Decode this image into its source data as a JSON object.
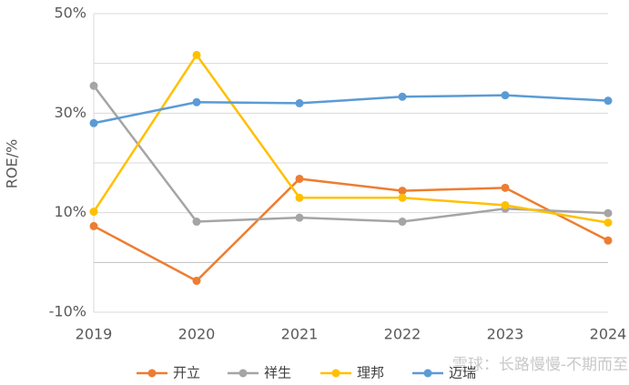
{
  "chart_data": {
    "type": "line",
    "y_label": "ROE/%",
    "categories": [
      "2019",
      "2020",
      "2021",
      "2022",
      "2023",
      "2024"
    ],
    "series": [
      {
        "name": "开立",
        "color": "#ed7d31",
        "values": [
          7.3,
          -3.7,
          16.8,
          14.4,
          15.0,
          4.4
        ]
      },
      {
        "name": "祥生",
        "color": "#a5a5a5",
        "values": [
          35.5,
          8.2,
          9.0,
          8.2,
          10.8,
          9.9
        ]
      },
      {
        "name": "理邦",
        "color": "#ffc000",
        "values": [
          10.2,
          41.7,
          13.0,
          13.0,
          11.5,
          8.0
        ]
      },
      {
        "name": "迈瑞",
        "color": "#5b9bd5",
        "values": [
          28.0,
          32.2,
          32.0,
          33.3,
          33.6,
          32.5
        ]
      }
    ],
    "ylim": [
      -10,
      50
    ],
    "yticks": [
      {
        "value": -10,
        "label": "-10%"
      },
      {
        "value": 10,
        "label": "10%"
      },
      {
        "value": 30,
        "label": "30%"
      },
      {
        "value": 50,
        "label": "50%"
      }
    ],
    "minor_yticks": [
      0,
      20,
      40
    ],
    "grid": true,
    "legend": "bottom",
    "watermark": "雪球：长路慢慢-不期而至"
  }
}
